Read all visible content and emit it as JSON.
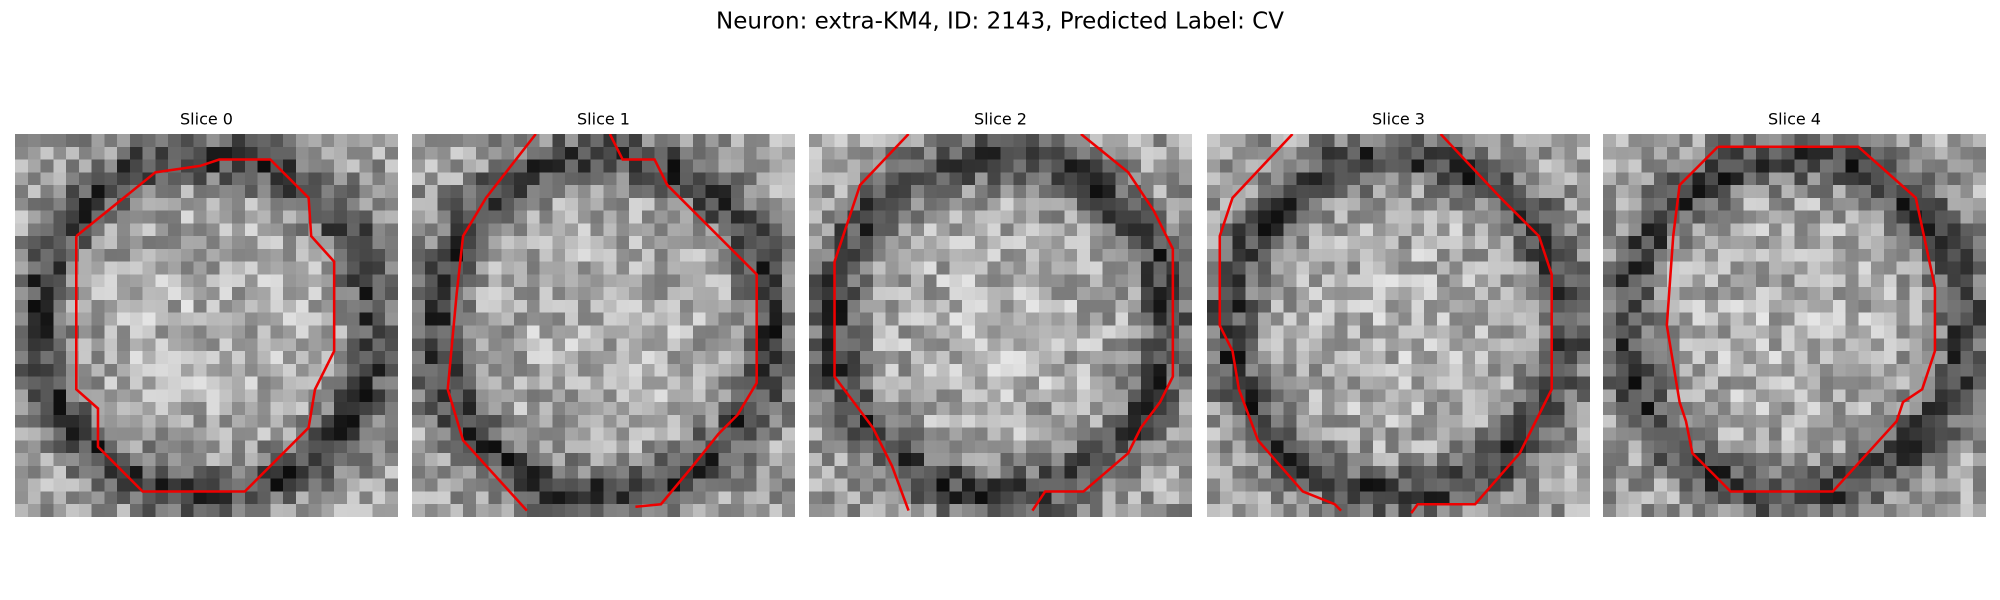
{
  "title": "Neuron: extra-KM4, ID: 2143, Predicted Label: CV",
  "panels": [
    {
      "title": "Slice 0"
    },
    {
      "title": "Slice 1"
    },
    {
      "title": "Slice 2"
    },
    {
      "title": "Slice 3"
    },
    {
      "title": "Slice 4"
    }
  ]
}
